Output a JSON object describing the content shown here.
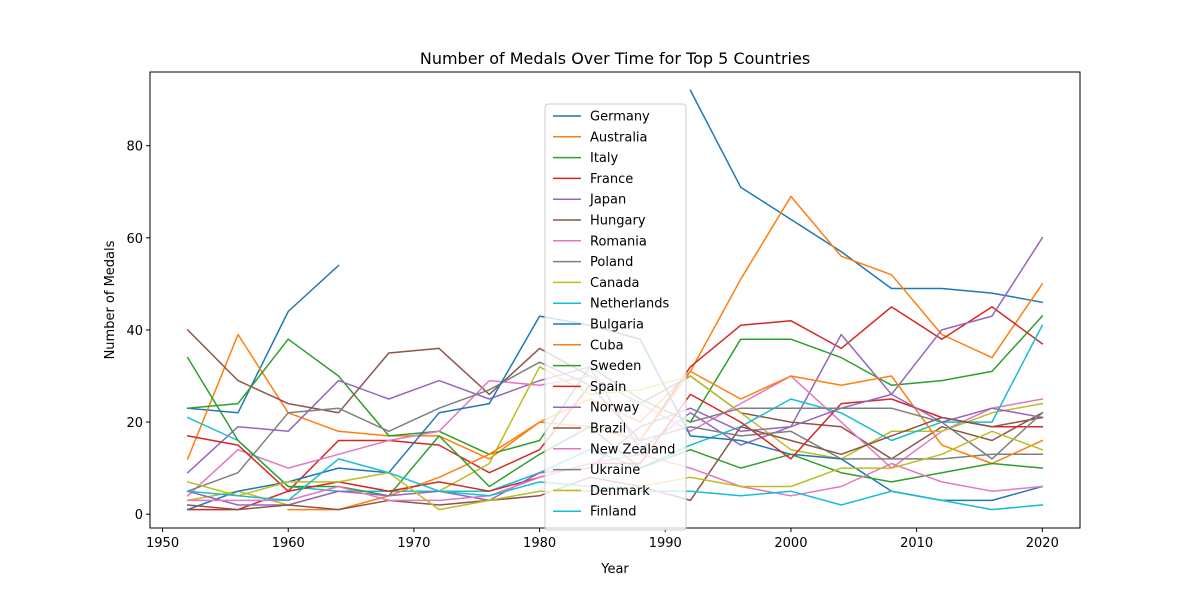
{
  "chart_data": {
    "type": "line",
    "title": "Number of Medals Over Time for Top 5 Countries",
    "xlabel": "Year",
    "ylabel": "Number of Medals",
    "xlim": [
      1949,
      2023
    ],
    "ylim": [
      -3,
      96
    ],
    "xticks": [
      1950,
      1960,
      1970,
      1980,
      1990,
      2000,
      2010,
      2020
    ],
    "yticks": [
      0,
      20,
      40,
      60,
      80
    ],
    "grid": false,
    "legend_position": "upper-center",
    "x": [
      1952,
      1956,
      1960,
      1964,
      1968,
      1972,
      1976,
      1980,
      1984,
      1988,
      1992,
      1996,
      2000,
      2004,
      2008,
      2012,
      2016,
      2020
    ],
    "series": [
      {
        "name": "Germany",
        "color": "#1f77b4",
        "values": [
          23,
          22,
          44,
          54,
          null,
          null,
          null,
          null,
          null,
          null,
          92,
          71,
          64,
          57,
          49,
          49,
          48,
          46
        ]
      },
      {
        "name": "Australia",
        "color": "#ff7f0e",
        "values": [
          12,
          39,
          22,
          18,
          17,
          17,
          12,
          20,
          25,
          20,
          31,
          51,
          69,
          56,
          52,
          39,
          34,
          50
        ]
      },
      {
        "name": "Italy",
        "color": "#2ca02c",
        "values": [
          23,
          24,
          38,
          30,
          17,
          18,
          13,
          16,
          32,
          25,
          20,
          38,
          38,
          34,
          28,
          29,
          31,
          43
        ]
      },
      {
        "name": "France",
        "color": "#d62728",
        "values": [
          1,
          1,
          5,
          16,
          16,
          15,
          9,
          14,
          28,
          16,
          32,
          41,
          42,
          36,
          45,
          38,
          45,
          37
        ]
      },
      {
        "name": "Japan",
        "color": "#9467bd",
        "values": [
          9,
          19,
          18,
          29,
          25,
          29,
          25,
          29,
          32,
          14,
          22,
          15,
          19,
          39,
          26,
          40,
          43,
          60
        ]
      },
      {
        "name": "Hungary",
        "color": "#8c564b",
        "values": [
          40,
          29,
          24,
          22,
          35,
          36,
          26,
          36,
          30,
          24,
          30,
          22,
          20,
          19,
          12,
          19,
          16,
          22
        ]
      },
      {
        "name": "Romania",
        "color": "#e377c2",
        "values": [
          4,
          14,
          10,
          13,
          16,
          18,
          29,
          28,
          30,
          24,
          18,
          24,
          30,
          20,
          10,
          18,
          23,
          25
        ]
      },
      {
        "name": "Poland",
        "color": "#7f7f7f",
        "values": [
          5,
          9,
          22,
          23,
          18,
          23,
          27,
          33,
          28,
          16,
          19,
          17,
          18,
          12,
          12,
          12,
          13,
          13
        ]
      },
      {
        "name": "Canada",
        "color": "#bcbd22",
        "values": [
          3,
          5,
          2,
          5,
          5,
          5,
          11,
          32,
          26,
          27,
          30,
          22,
          14,
          12,
          18,
          18,
          22,
          24
        ]
      },
      {
        "name": "Netherlands",
        "color": "#17becf",
        "values": [
          21,
          16,
          6,
          5,
          5,
          5,
          5,
          9,
          14,
          10,
          15,
          19,
          25,
          22,
          16,
          20,
          20,
          41
        ]
      },
      {
        "name": "Bulgaria",
        "color": "#1f77b4",
        "values": [
          1,
          5,
          7,
          10,
          9,
          22,
          24,
          43,
          41,
          38,
          17,
          16,
          13,
          12,
          5,
          3,
          3,
          6
        ]
      },
      {
        "name": "Cuba",
        "color": "#ff7f0e",
        "values": [
          null,
          null,
          1,
          1,
          4,
          8,
          13,
          20,
          19,
          16,
          31,
          25,
          30,
          28,
          30,
          15,
          11,
          16
        ]
      },
      {
        "name": "Sweden",
        "color": "#2ca02c",
        "values": [
          34,
          16,
          6,
          6,
          4,
          17,
          6,
          13,
          19,
          10,
          14,
          10,
          13,
          9,
          7,
          9,
          11,
          10
        ]
      },
      {
        "name": "Spain",
        "color": "#d62728",
        "values": [
          17,
          15,
          5,
          7,
          5,
          7,
          5,
          8,
          11,
          11,
          26,
          20,
          12,
          24,
          25,
          21,
          19,
          19
        ]
      },
      {
        "name": "Norway",
        "color": "#9467bd",
        "values": [
          5,
          2,
          2,
          5,
          4,
          5,
          3,
          9,
          10,
          19,
          23,
          18,
          19,
          23,
          26,
          20,
          23,
          21
        ]
      },
      {
        "name": "Brazil",
        "color": "#8c564b",
        "values": [
          2,
          1,
          2,
          1,
          3,
          2,
          3,
          4,
          8,
          6,
          3,
          19,
          16,
          13,
          17,
          21,
          19,
          21
        ]
      },
      {
        "name": "New Zealand",
        "color": "#e377c2",
        "values": [
          3,
          3,
          3,
          6,
          3,
          3,
          4,
          8,
          11,
          13,
          10,
          6,
          4,
          6,
          11,
          7,
          5,
          6
        ]
      },
      {
        "name": "Ukraine",
        "color": "#7f7f7f",
        "values": [
          null,
          null,
          null,
          null,
          null,
          null,
          null,
          null,
          null,
          null,
          20,
          23,
          23,
          23,
          23,
          20,
          12,
          22
        ]
      },
      {
        "name": "Denmark",
        "color": "#bcbd22",
        "values": [
          7,
          4,
          7,
          7,
          9,
          1,
          3,
          5,
          5,
          6,
          8,
          6,
          6,
          10,
          10,
          13,
          18,
          14
        ]
      },
      {
        "name": "Finland",
        "color": "#17becf",
        "values": [
          5,
          4,
          3,
          12,
          9,
          5,
          4,
          7,
          6,
          5,
          5,
          4,
          5,
          2,
          5,
          3,
          1,
          2
        ]
      }
    ]
  }
}
